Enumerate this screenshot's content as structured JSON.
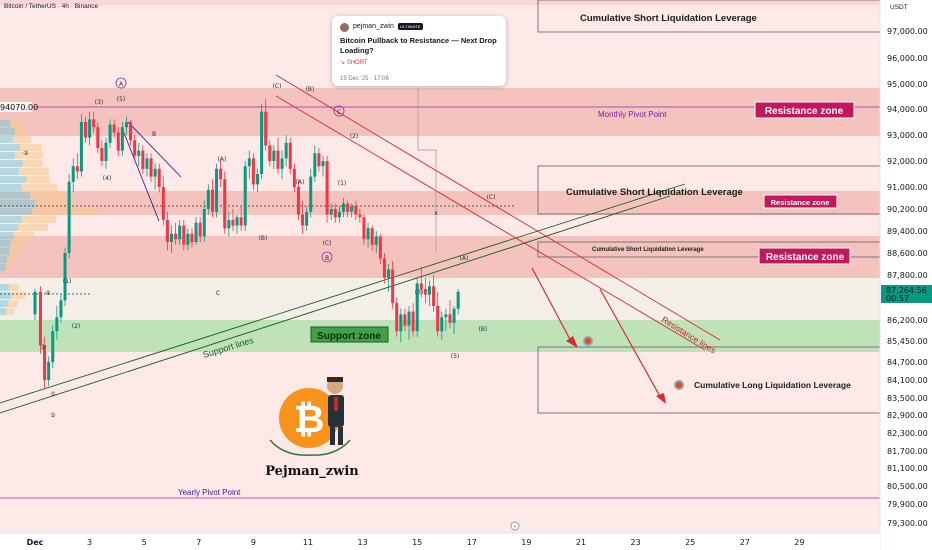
{
  "chart_data": {
    "type": "candlestick",
    "symbol_title": "Bitcoin / TetherUS · 4h · Binance",
    "currency": "USDT",
    "ylim": [
      79000,
      97600
    ],
    "y_ticks": [
      97000,
      96000,
      95000,
      94000,
      93000,
      92000,
      91000,
      90200,
      89400,
      88600,
      87800,
      86200,
      85450,
      84700,
      84100,
      83500,
      82900,
      82300,
      81700,
      81100,
      80500,
      79900,
      79300
    ],
    "y_tick_labels": [
      "97,000.00",
      "96,000.00",
      "95,000.00",
      "94,000.00",
      "93,000.00",
      "92,000.00",
      "91,000.00",
      "90,200.00",
      "89,400.00",
      "88,600.00",
      "87,800.00",
      "86,200.00",
      "85,450.00",
      "84,700.00",
      "84,100.00",
      "83,500.00",
      "82,900.00",
      "82,300.00",
      "81,700.00",
      "81,100.00",
      "80,500.00",
      "79,900.00",
      "79,300.00"
    ],
    "x_ticks": [
      1,
      3,
      5,
      7,
      9,
      11,
      13,
      15,
      17,
      19,
      21,
      23,
      25,
      27,
      29
    ],
    "x_tick_labels": [
      "Dec",
      "3",
      "5",
      "7",
      "9",
      "11",
      "13",
      "15",
      "17",
      "19",
      "21",
      "23",
      "25",
      "27",
      "29"
    ],
    "current_price": "87,264.56",
    "countdown": "00:57",
    "pivot_left_label": "94070.00",
    "candles": [
      [
        1.0,
        86400,
        87300,
        86200,
        87200
      ],
      [
        1.2,
        87200,
        87400,
        85000,
        85300
      ],
      [
        1.35,
        85300,
        85600,
        83800,
        84100
      ],
      [
        1.5,
        84100,
        84900,
        83900,
        84700
      ],
      [
        1.65,
        84700,
        86000,
        84500,
        85800
      ],
      [
        1.8,
        85800,
        86700,
        85500,
        86300
      ],
      [
        1.95,
        86300,
        87100,
        86100,
        86900
      ],
      [
        2.1,
        86900,
        88800,
        86700,
        88600
      ],
      [
        2.25,
        88600,
        91500,
        88400,
        91200
      ],
      [
        2.4,
        91200,
        92100,
        90800,
        91800
      ],
      [
        2.55,
        91800,
        92300,
        91300,
        91600
      ],
      [
        2.7,
        91600,
        93800,
        91400,
        93500
      ],
      [
        2.85,
        93500,
        93700,
        92700,
        92900
      ],
      [
        3.0,
        92900,
        93900,
        92600,
        93600
      ],
      [
        3.15,
        93600,
        93900,
        93100,
        93300
      ],
      [
        3.3,
        93300,
        93500,
        92300,
        92500
      ],
      [
        3.45,
        92500,
        92800,
        91800,
        92000
      ],
      [
        3.6,
        92000,
        92900,
        91700,
        92700
      ],
      [
        3.75,
        92700,
        93600,
        92500,
        93400
      ],
      [
        3.9,
        93400,
        93600,
        92900,
        93100
      ],
      [
        4.05,
        93100,
        93300,
        92200,
        92400
      ],
      [
        4.2,
        92400,
        93500,
        92200,
        93300
      ],
      [
        4.35,
        93300,
        93700,
        93000,
        93500
      ],
      [
        4.5,
        93500,
        93600,
        92600,
        92800
      ],
      [
        4.65,
        92800,
        93000,
        92000,
        92200
      ],
      [
        4.8,
        92200,
        92700,
        91800,
        92400
      ],
      [
        4.95,
        92400,
        92600,
        91500,
        91700
      ],
      [
        5.1,
        91700,
        92300,
        91400,
        92100
      ],
      [
        5.25,
        92100,
        92300,
        91200,
        91400
      ],
      [
        5.4,
        91400,
        91900,
        90900,
        91700
      ],
      [
        5.55,
        91700,
        91900,
        90800,
        91000
      ],
      [
        5.7,
        91000,
        91400,
        89600,
        89800
      ],
      [
        5.85,
        89800,
        90100,
        88700,
        89000
      ],
      [
        6.0,
        89000,
        89600,
        88600,
        89300
      ],
      [
        6.15,
        89300,
        89700,
        88900,
        89100
      ],
      [
        6.3,
        89100,
        89800,
        88900,
        89600
      ],
      [
        6.45,
        89600,
        89800,
        88700,
        88900
      ],
      [
        6.6,
        88900,
        89500,
        88700,
        89300
      ],
      [
        6.75,
        89300,
        89500,
        88800,
        89000
      ],
      [
        6.9,
        89000,
        89900,
        88900,
        89700
      ],
      [
        7.05,
        89700,
        89900,
        89000,
        89200
      ],
      [
        7.2,
        89200,
        90500,
        89000,
        90200
      ],
      [
        7.35,
        90200,
        91100,
        90000,
        90900
      ],
      [
        7.5,
        90900,
        91300,
        89900,
        90100
      ],
      [
        7.65,
        90100,
        91900,
        89900,
        91700
      ],
      [
        7.8,
        91700,
        92100,
        91000,
        91300
      ],
      [
        7.95,
        91300,
        91600,
        89300,
        89500
      ],
      [
        8.1,
        89500,
        90100,
        89200,
        89800
      ],
      [
        8.25,
        89800,
        90200,
        89400,
        89600
      ],
      [
        8.4,
        89600,
        90000,
        89300,
        89900
      ],
      [
        8.55,
        89900,
        90300,
        89400,
        89600
      ],
      [
        8.7,
        89600,
        92000,
        89400,
        91800
      ],
      [
        8.85,
        91800,
        92400,
        91300,
        92100
      ],
      [
        9.0,
        92100,
        92300,
        90900,
        91100
      ],
      [
        9.15,
        91100,
        91700,
        90800,
        91500
      ],
      [
        9.3,
        91500,
        94200,
        91300,
        93900
      ],
      [
        9.45,
        93900,
        94400,
        92400,
        92600
      ],
      [
        9.6,
        92600,
        92800,
        91800,
        92000
      ],
      [
        9.75,
        92000,
        92600,
        91700,
        92400
      ],
      [
        9.9,
        92400,
        92900,
        91500,
        91700
      ],
      [
        10.05,
        91700,
        92400,
        91300,
        92100
      ],
      [
        10.2,
        92100,
        93000,
        91800,
        92700
      ],
      [
        10.35,
        92700,
        92900,
        91500,
        91700
      ],
      [
        10.5,
        91700,
        91900,
        90800,
        91000
      ],
      [
        10.65,
        91000,
        91300,
        89800,
        90000
      ],
      [
        10.8,
        90000,
        90500,
        89300,
        89600
      ],
      [
        10.95,
        89600,
        90300,
        89400,
        90100
      ],
      [
        11.1,
        90100,
        91700,
        89900,
        91400
      ],
      [
        11.25,
        91400,
        92600,
        91200,
        92300
      ],
      [
        11.4,
        92300,
        92500,
        91600,
        91800
      ],
      [
        11.55,
        91800,
        92200,
        91400,
        92000
      ],
      [
        11.7,
        92000,
        92200,
        89700,
        90000
      ],
      [
        11.85,
        90000,
        90400,
        89800,
        90200
      ],
      [
        12.0,
        90200,
        90400,
        89700,
        89900
      ],
      [
        12.15,
        89900,
        90300,
        89700,
        90100
      ],
      [
        12.3,
        90100,
        90600,
        89900,
        90400
      ],
      [
        12.45,
        90400,
        90500,
        89900,
        90100
      ],
      [
        12.6,
        90100,
        90400,
        89900,
        90300
      ],
      [
        12.75,
        90300,
        90500,
        89800,
        90000
      ],
      [
        12.9,
        90000,
        90200,
        89700,
        89900
      ],
      [
        13.05,
        89900,
        90000,
        88900,
        89100
      ],
      [
        13.2,
        89100,
        89700,
        88800,
        89500
      ],
      [
        13.35,
        89500,
        89600,
        88700,
        88900
      ],
      [
        13.5,
        88900,
        89400,
        88600,
        89200
      ],
      [
        13.65,
        89200,
        89300,
        88200,
        88400
      ],
      [
        13.8,
        88400,
        88600,
        87500,
        87700
      ],
      [
        13.95,
        87700,
        88200,
        87200,
        88000
      ],
      [
        14.1,
        88000,
        88300,
        86600,
        86800
      ],
      [
        14.25,
        86800,
        87000,
        85600,
        85800
      ],
      [
        14.4,
        85800,
        86600,
        85400,
        86400
      ],
      [
        14.55,
        86400,
        86600,
        85800,
        86000
      ],
      [
        14.7,
        86000,
        86700,
        85500,
        86500
      ],
      [
        14.85,
        86500,
        86800,
        85600,
        85800
      ],
      [
        15.0,
        85800,
        87700,
        85600,
        87500
      ],
      [
        15.15,
        87500,
        88100,
        87000,
        87300
      ],
      [
        15.3,
        87300,
        87700,
        86800,
        87100
      ],
      [
        15.45,
        87100,
        87600,
        86700,
        87400
      ],
      [
        15.6,
        87400,
        87800,
        86500,
        86700
      ],
      [
        15.75,
        86700,
        87200,
        85600,
        85800
      ],
      [
        15.9,
        85800,
        86500,
        85500,
        86300
      ],
      [
        16.05,
        86300,
        86600,
        85800,
        86400
      ],
      [
        16.2,
        86400,
        86900,
        85900,
        86100
      ],
      [
        16.35,
        86100,
        86700,
        85700,
        86600
      ],
      [
        16.5,
        86600,
        87300,
        86400,
        87200
      ]
    ]
  },
  "annotations": {
    "cslL_top": "Cumulative Short Liquidation Leverage",
    "cslL_mid": "Cumulative Short Liquidation Leverage",
    "cslL_small": "Cumulative Short Liquidation Leverage",
    "clL": "Cumulative Long Liquidation Leverage",
    "monthly_pivot": "Monthly Pivot Point",
    "yearly_pivot": "Yearly Pivot Point",
    "resistance_zone_1": "Resistance zone",
    "resistance_zone_2": "Resistance zone",
    "resistance_zone_3": "Resistance zone",
    "support_zone": "Support zone",
    "support_lines": "Support lines",
    "resistance_lines": "Resistance lines",
    "brand": "Pejman_zwin",
    "waves": {
      "A": "A",
      "B": "B",
      "C": "C",
      "c": "C",
      "w1": "(1)",
      "w2": "(2)",
      "w3": "(3)",
      "w4": "(4)",
      "w5": "(5)",
      "c1": "①",
      "c2": "②",
      "c3": "③",
      "c4": "④",
      "c5": "⑤",
      "sa": "(A)",
      "sb": "(B)",
      "sc": "(C)",
      "ra": "(A)",
      "rb": "(B)",
      "rc": "(C)",
      "w1b": "(1)",
      "w2b": "(2)",
      "w3b": "(3)",
      "w5b": "(5)",
      "b": "B",
      "x": "x",
      "v1": "(1)",
      "v2": "(2)",
      "v3": "(3)",
      "v4": "(4)",
      "v5": "(5)",
      "m3": "(3)",
      "m5": "(5)",
      "m1": "(1)",
      "m4": "(4)",
      "m2": "(2)"
    }
  },
  "post": {
    "author": "pejman_zwin",
    "badge": "ULTIMATE",
    "title": "Bitcoin Pullback to Resistance — Next Drop Loading?",
    "direction": "↘ SHORT",
    "date": "15 Dec '25 · 17:06"
  },
  "colors": {
    "up": "#089981",
    "down": "#f23645",
    "resistance_fill": "#f3a8a3",
    "support_fill": "#a5d6a7",
    "pivot": "#9c27b0",
    "trend_red": "#e53935",
    "trend_green": "#1b5e20",
    "accent_red": "#c2185b"
  }
}
